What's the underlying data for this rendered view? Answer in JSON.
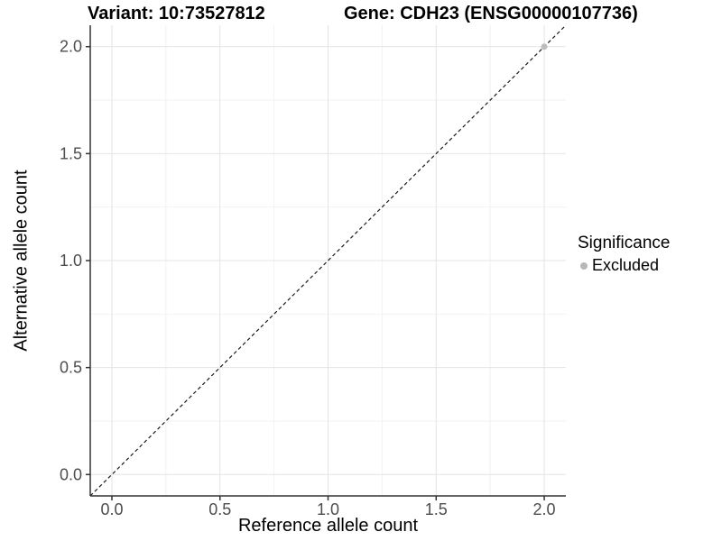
{
  "chart_data": {
    "type": "scatter",
    "title_left": "Variant: 10:73527812",
    "title_right": "Gene: CDH23 (ENSG00000107736)",
    "xlabel": "Reference allele count",
    "ylabel": "Alternative allele count",
    "xlim": [
      -0.1,
      2.1
    ],
    "ylim": [
      -0.1,
      2.1
    ],
    "x_ticks": [
      0.0,
      0.5,
      1.0,
      1.5,
      2.0
    ],
    "y_ticks": [
      0.0,
      0.5,
      1.0,
      1.5,
      2.0
    ],
    "x_tick_labels": [
      "0.0",
      "0.5",
      "1.0",
      "1.5",
      "2.0"
    ],
    "y_tick_labels": [
      "0.0",
      "0.5",
      "1.0",
      "1.5",
      "2.0"
    ],
    "minor_ticks": [
      0.25,
      0.75,
      1.25,
      1.75
    ],
    "grid": true,
    "points": [
      {
        "x": 2.0,
        "y": 2.0,
        "series": "Excluded",
        "color": "#bdbdbd",
        "radius": 3.5
      }
    ],
    "reference_line": {
      "style": "dashed",
      "slope": 1,
      "intercept": 0,
      "color": "#1a1a1a"
    },
    "legend": {
      "title": "Significance",
      "position": "right",
      "items": [
        {
          "label": "Excluded",
          "color": "#b8b8b8"
        }
      ]
    },
    "colors": {
      "axis_line": "#333333",
      "tick_text": "#4d4d4d",
      "grid_major": "#e4e4e4",
      "grid_minor": "#f2f2f2",
      "background": "#ffffff"
    }
  }
}
